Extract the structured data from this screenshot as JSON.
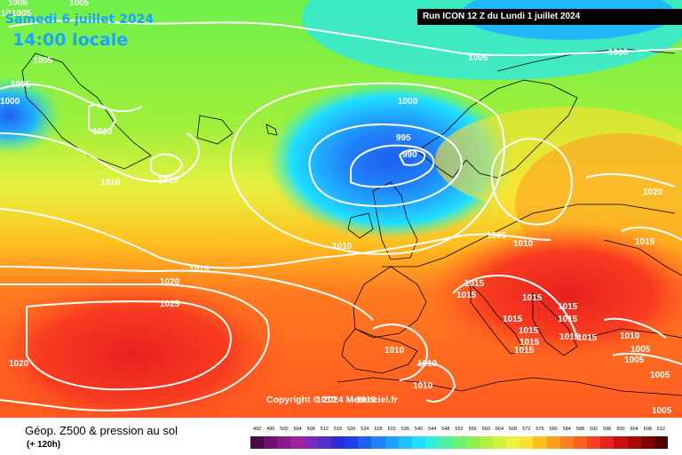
{
  "header": {
    "date": "Samedi 6 juillet 2024",
    "time": "14:00 locale",
    "run": "Run ICON 12 Z du Lundi 1 juillet 2024"
  },
  "copyright": "Copyright © 2024 Meteociel.fr",
  "footer": {
    "title": "Géop. Z500 & pression au sol",
    "subtitle": "(+ 120h)"
  },
  "legend": {
    "values": [
      492,
      496,
      500,
      504,
      508,
      512,
      516,
      520,
      524,
      528,
      532,
      536,
      540,
      544,
      548,
      552,
      556,
      560,
      564,
      568,
      572,
      576,
      580,
      584,
      588,
      592,
      596,
      600,
      604,
      608,
      612
    ],
    "colors": [
      "#4a0a4a",
      "#6e0f6e",
      "#8a1a8a",
      "#a020a0",
      "#7a2ab8",
      "#5030c8",
      "#2a2ad8",
      "#1e40e8",
      "#1e60f0",
      "#2080f8",
      "#20a0ff",
      "#20c0ff",
      "#20e0ff",
      "#30f0d8",
      "#50f0a0",
      "#70f070",
      "#90f050",
      "#b0f040",
      "#d0f040",
      "#f0f040",
      "#ffe030",
      "#ffc020",
      "#ffa020",
      "#ff8020",
      "#ff6020",
      "#f84020",
      "#e82020",
      "#c81010",
      "#a80808",
      "#800000",
      "#500000"
    ]
  },
  "isobar_labels": [
    "1005",
    "1005",
    "1005",
    "1005",
    "10",
    "1005",
    "1000",
    "1010",
    "1010",
    "1015",
    "1000",
    "1005",
    "1000",
    "995",
    "990",
    "1010",
    "1015",
    "1020",
    "1025",
    "1020",
    "1005",
    "1010",
    "1020",
    "1015",
    "1015",
    "1015",
    "1015",
    "1015",
    "1015",
    "1015",
    "1015",
    "1015",
    "1015",
    "1015",
    "1015",
    "1010",
    "1010",
    "1010",
    "1010",
    "1005",
    "1005",
    "1005",
    "1005",
    "1010",
    "1010"
  ]
}
